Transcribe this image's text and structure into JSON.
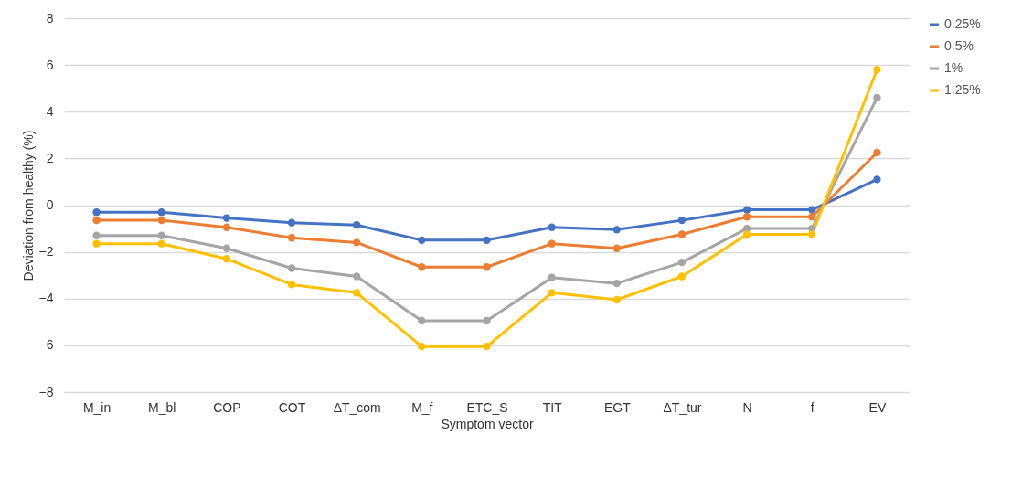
{
  "chart_data": {
    "type": "line",
    "xlabel": "Symptom vector",
    "ylabel": "Deviation from healthy (%)",
    "categories": [
      "M_in",
      "M_bl",
      "COP",
      "COT",
      "ΔT_com",
      "M_f",
      "ETC_S",
      "TIT",
      "EGT",
      "ΔT_tur",
      "N",
      "f",
      "EV"
    ],
    "series": [
      {
        "name": "0.25%",
        "color": "#4472c4",
        "values": [
          -0.3,
          -0.3,
          -0.55,
          -0.75,
          -0.85,
          -1.5,
          -1.5,
          -0.95,
          -1.05,
          -0.65,
          -0.2,
          -0.2,
          1.1
        ]
      },
      {
        "name": "0.5%",
        "color": "#ed7d31",
        "values": [
          -0.65,
          -0.65,
          -0.95,
          -1.4,
          -1.6,
          -2.65,
          -2.65,
          -1.65,
          -1.85,
          -1.25,
          -0.5,
          -0.5,
          2.25
        ]
      },
      {
        "name": "1%",
        "color": "#a5a5a5",
        "values": [
          -1.3,
          -1.3,
          -1.85,
          -2.7,
          -3.05,
          -4.95,
          -4.95,
          -3.1,
          -3.35,
          -2.45,
          -1.0,
          -1.0,
          4.6
        ]
      },
      {
        "name": "1.25%",
        "color": "#ffc000",
        "values": [
          -1.65,
          -1.65,
          -2.3,
          -3.4,
          -3.75,
          -6.05,
          -6.05,
          -3.75,
          -4.05,
          -3.05,
          -1.25,
          -1.25,
          5.8
        ]
      }
    ],
    "ylim": [
      -8,
      8
    ],
    "yticks": [
      -8,
      -6,
      -4,
      -2,
      0,
      2,
      4,
      6,
      8
    ],
    "grid": "y",
    "legend": "right",
    "marker": "circle",
    "line_style": "solid"
  }
}
